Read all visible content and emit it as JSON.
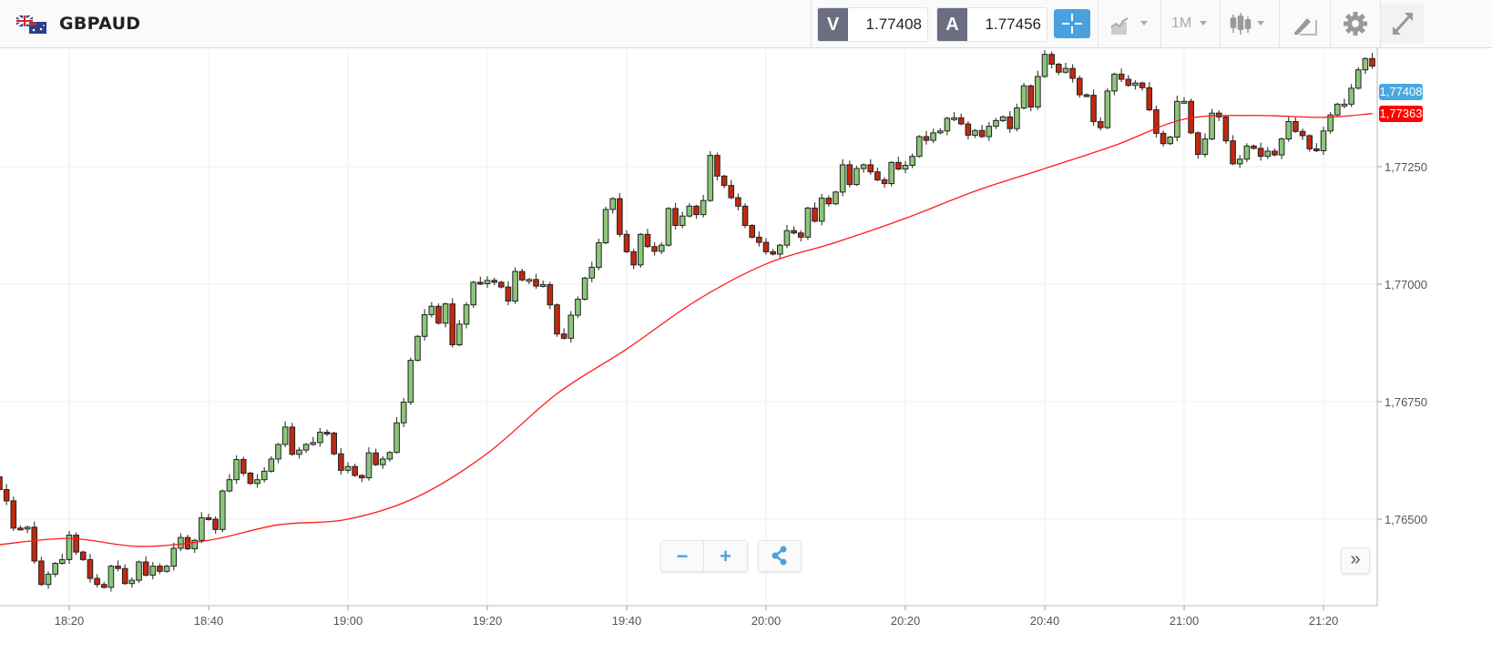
{
  "header": {
    "symbol": "GBPAUD",
    "flag_icon": "gb-au-flag-icon",
    "sell": {
      "tag": "V",
      "price": "1.77408"
    },
    "buy": {
      "tag": "A",
      "price": "1.77456"
    },
    "timeframe": "1M",
    "icons": [
      "crosshair-icon",
      "chart-type-icon",
      "candlestick-icon",
      "drawing-tool-icon",
      "gear-icon",
      "expand-icon"
    ]
  },
  "controls": {
    "zoom_out": "−",
    "zoom_in": "+",
    "share_icon": "share-icon",
    "scroll_right": "»"
  },
  "colors": {
    "up": "#8cc679",
    "down": "#c1290f",
    "ma": "#ff1a1a",
    "bid_label": "#4aa8e0",
    "ma_label": "#ff0000",
    "accent": "#4aa1e0"
  },
  "chart_data": {
    "type": "candlestick",
    "instrument": "GBPAUD",
    "interval": "1 minute",
    "first_time": "18:10",
    "ylim": [
      1.7635,
      1.775
    ],
    "y_ticks": [
      "1,76500",
      "1,76750",
      "1,77000",
      "1,77250"
    ],
    "y_tick_values": [
      1.765,
      1.7675,
      1.77,
      1.7725
    ],
    "x_ticks": [
      "18:20",
      "18:40",
      "19:00",
      "19:20",
      "19:40",
      "20:00",
      "20:20",
      "20:40",
      "21:00",
      "21:20"
    ],
    "grid": true,
    "first_open": 1.7659,
    "closes": [
      1.76563,
      1.76539,
      1.76481,
      1.76479,
      1.76483,
      1.76411,
      1.76361,
      1.76383,
      1.76406,
      1.76414,
      1.76466,
      1.7643,
      1.76414,
      1.76374,
      1.76361,
      1.76355,
      1.764,
      1.76395,
      1.76363,
      1.7637,
      1.76409,
      1.76381,
      1.764,
      1.76389,
      1.764,
      1.76438,
      1.76461,
      1.76437,
      1.76455,
      1.76503,
      1.765,
      1.76478,
      1.7656,
      1.76584,
      1.76627,
      1.76598,
      1.76576,
      1.76584,
      1.76602,
      1.76628,
      1.76659,
      1.76696,
      1.76638,
      1.76647,
      1.76659,
      1.76663,
      1.76685,
      1.76683,
      1.76639,
      1.76604,
      1.76612,
      1.76593,
      1.76588,
      1.76641,
      1.76616,
      1.76628,
      1.76642,
      1.76705,
      1.76749,
      1.76838,
      1.76889,
      1.76935,
      1.76953,
      1.76917,
      1.76958,
      1.76871,
      1.76915,
      1.76956,
      1.77004,
      1.77001,
      1.77008,
      1.77004,
      1.76994,
      1.76964,
      1.77027,
      1.77009,
      1.7701,
      1.76996,
      1.76999,
      1.76956,
      1.76894,
      1.76885,
      1.76934,
      1.76968,
      1.77013,
      1.77036,
      1.77088,
      1.77159,
      1.77182,
      1.77106,
      1.77069,
      1.77041,
      1.77106,
      1.7708,
      1.7707,
      1.77083,
      1.77161,
      1.77125,
      1.77145,
      1.77166,
      1.77148,
      1.77178,
      1.77274,
      1.7723,
      1.7721,
      1.77184,
      1.77166,
      1.77125,
      1.771,
      1.77089,
      1.77069,
      1.77064,
      1.77083,
      1.77114,
      1.77109,
      1.771,
      1.77162,
      1.77134,
      1.77183,
      1.77171,
      1.77196,
      1.77254,
      1.77212,
      1.77246,
      1.77254,
      1.77239,
      1.77222,
      1.77214,
      1.77259,
      1.77245,
      1.77253,
      1.77272,
      1.77314,
      1.77306,
      1.77322,
      1.77326,
      1.77353,
      1.77354,
      1.77341,
      1.77317,
      1.77327,
      1.77314,
      1.77336,
      1.77348,
      1.77356,
      1.77331,
      1.77375,
      1.77422,
      1.77377,
      1.77442,
      1.77489,
      1.77468,
      1.77451,
      1.77459,
      1.77438,
      1.77403,
      1.77402,
      1.77346,
      1.77333,
      1.77411,
      1.77447,
      1.77436,
      1.77423,
      1.77428,
      1.77418,
      1.77371,
      1.77321,
      1.77299,
      1.77313,
      1.77389,
      1.77389,
      1.77322,
      1.77276,
      1.77309,
      1.77364,
      1.77356,
      1.77305,
      1.77256,
      1.77266,
      1.77294,
      1.77289,
      1.77272,
      1.77283,
      1.77275,
      1.77309,
      1.77346,
      1.77325,
      1.77316,
      1.77288,
      1.77284,
      1.77326,
      1.7736,
      1.77383,
      1.77383,
      1.77417,
      1.77456,
      1.7748,
      1.77464
    ],
    "moving_average": {
      "times": [
        "18:10",
        "18:20",
        "18:30",
        "18:40",
        "18:50",
        "19:00",
        "19:10",
        "19:20",
        "19:30",
        "19:40",
        "19:50",
        "20:00",
        "20:10",
        "20:20",
        "20:30",
        "20:40",
        "20:50",
        "21:00",
        "21:10",
        "21:20",
        "21:27"
      ],
      "values": [
        1.76446,
        1.76459,
        1.76442,
        1.76455,
        1.76488,
        1.765,
        1.76548,
        1.7664,
        1.76767,
        1.76862,
        1.76965,
        1.77043,
        1.77089,
        1.7714,
        1.77198,
        1.77246,
        1.77295,
        1.77351,
        1.77359,
        1.77355,
        1.77363
      ]
    },
    "last_price_label": "1,77408",
    "ma_label": "1,77363"
  }
}
